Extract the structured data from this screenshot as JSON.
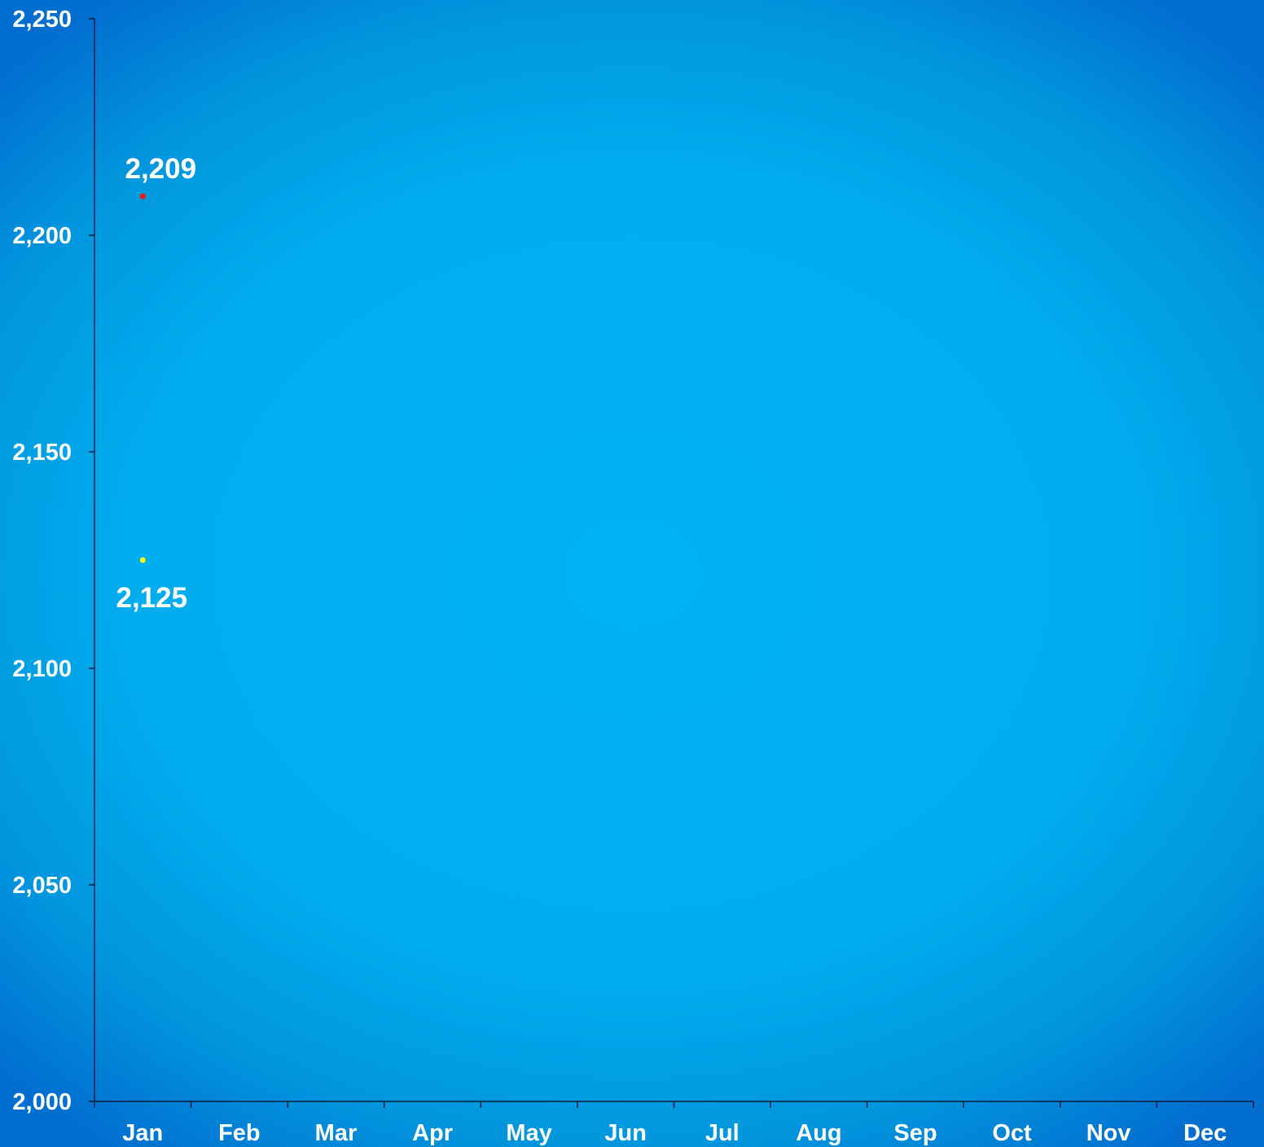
{
  "chart_data": {
    "type": "scatter",
    "categories": [
      "Jan",
      "Feb",
      "Mar",
      "Apr",
      "May",
      "Jun",
      "Jul",
      "Aug",
      "Sep",
      "Oct",
      "Nov",
      "Dec"
    ],
    "ylim": [
      2000,
      2250
    ],
    "yticks": [
      2000,
      2050,
      2100,
      2150,
      2200,
      2250
    ],
    "ytick_labels": [
      "2,000",
      "2,050",
      "2,100",
      "2,150",
      "2,200",
      "2,250"
    ],
    "grid": false,
    "series": [
      {
        "color": "#ff1010",
        "points": [
          {
            "category": "Jan",
            "value": 2209,
            "label": "2,209",
            "label_position": "above"
          }
        ]
      },
      {
        "color": "#ffff00",
        "points": [
          {
            "category": "Jan",
            "value": 2125,
            "label": "2,125",
            "label_position": "below"
          }
        ]
      }
    ],
    "colors": {
      "axis": "#0a1a3a",
      "text": "#ffffff"
    }
  }
}
